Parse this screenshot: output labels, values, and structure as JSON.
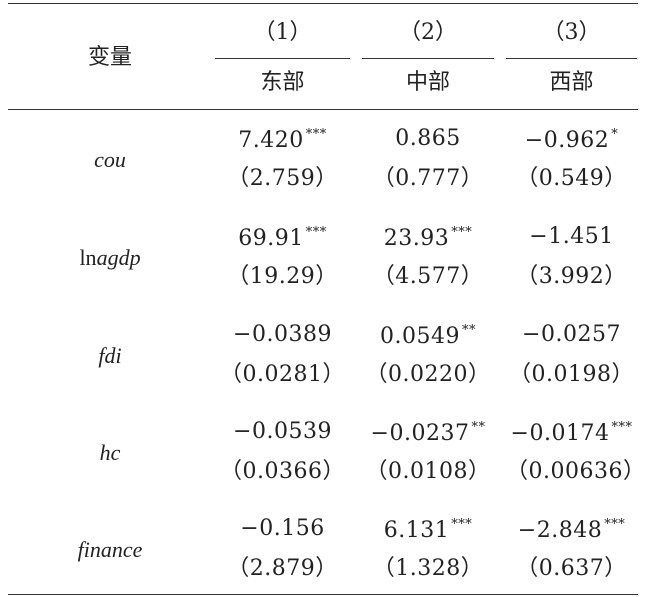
{
  "header": {
    "var_label": "变量",
    "columns": [
      {
        "number": "（1）",
        "region": "东部"
      },
      {
        "number": "（2）",
        "region": "中部"
      },
      {
        "number": "（3）",
        "region": "西部"
      }
    ]
  },
  "rows": [
    {
      "var_prefix": "",
      "var_italic": "cou",
      "coef": [
        "7.420",
        "0.865",
        "−0.962"
      ],
      "stars": [
        "***",
        "",
        "*"
      ],
      "se": [
        "（2.759）",
        "（0.777）",
        "（0.549）"
      ]
    },
    {
      "var_prefix": "ln",
      "var_italic": "agdp",
      "coef": [
        "69.91",
        "23.93",
        "−1.451"
      ],
      "stars": [
        "***",
        "***",
        ""
      ],
      "se": [
        "（19.29）",
        "（4.577）",
        "（3.992）"
      ]
    },
    {
      "var_prefix": "",
      "var_italic": "fdi",
      "coef": [
        "−0.0389",
        "0.0549",
        "−0.0257"
      ],
      "stars": [
        "",
        "**",
        ""
      ],
      "se": [
        "（0.0281）",
        "（0.0220）",
        "（0.0198）"
      ]
    },
    {
      "var_prefix": "",
      "var_italic": "hc",
      "coef": [
        "−0.0539",
        "−0.0237",
        "−0.0174"
      ],
      "stars": [
        "",
        "**",
        "***"
      ],
      "se": [
        "（0.0366）",
        "（0.0108）",
        "（0.00636）"
      ]
    },
    {
      "var_prefix": "",
      "var_italic": "finance",
      "coef": [
        "−0.156",
        "6.131",
        "−2.848"
      ],
      "stars": [
        "",
        "***",
        "***"
      ],
      "se": [
        "（2.879）",
        "（1.328）",
        "（0.637）"
      ]
    }
  ]
}
